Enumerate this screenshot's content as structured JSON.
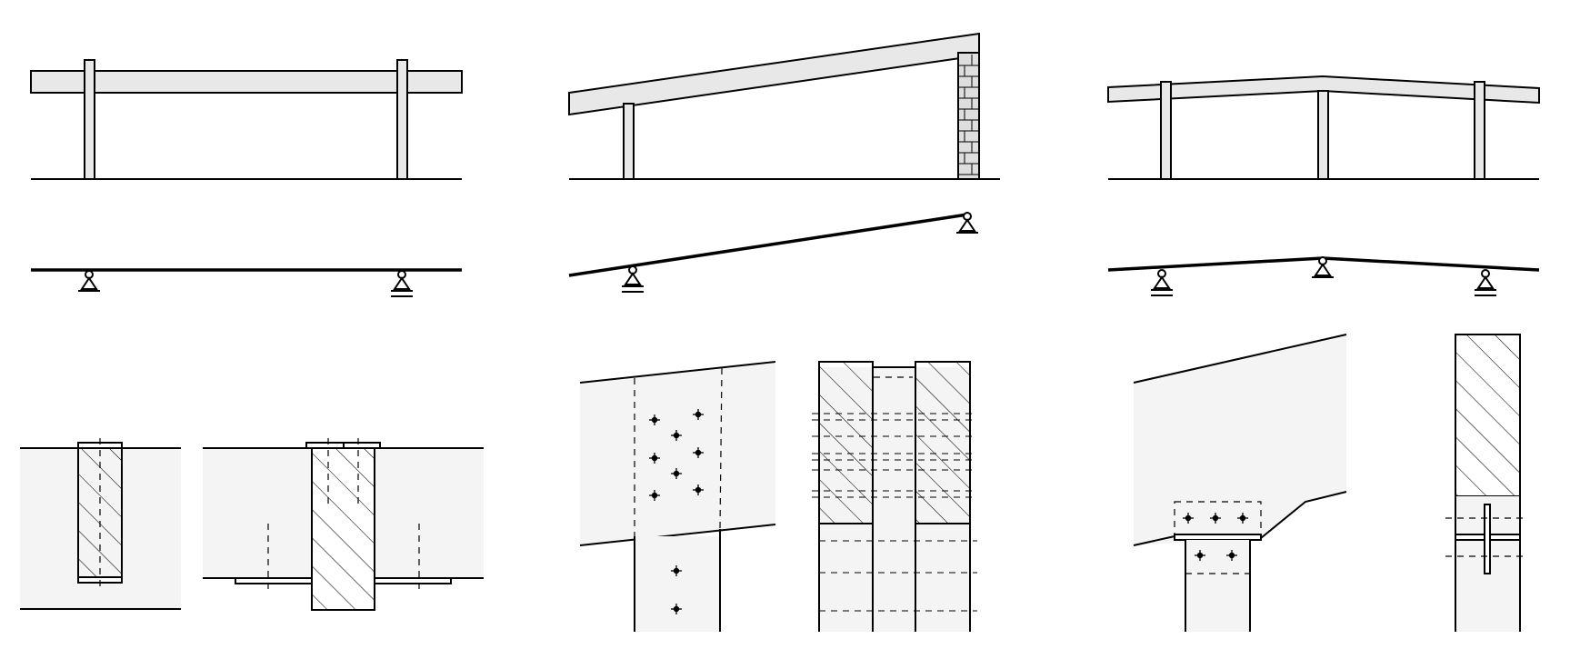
{
  "colors": {
    "member_fill": "#e8e8e8",
    "plate_fill": "#f4f4f4",
    "wall_fill": "#dedede",
    "line": "#000000"
  },
  "figure": {
    "rows": [
      {
        "name": "structure-elevations",
        "panels": [
          "straight-beam-on-two-posts",
          "sloped-beam-post-and-masonry-wall",
          "pitched-beam-on-three-posts"
        ]
      },
      {
        "name": "static-systems",
        "panels": [
          "simply-supported-beam",
          "inclined-simply-supported-beam",
          "two-span-continuous-beam"
        ]
      },
      {
        "name": "connection-details",
        "panels": [
          "post-beam-side-plate-joint",
          "dowelled-gusset-connection",
          "bolted-bearing-plate-connection"
        ]
      }
    ]
  }
}
